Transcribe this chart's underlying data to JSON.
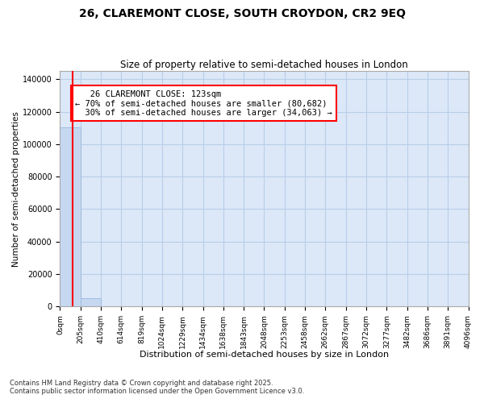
{
  "title_line1": "26, CLAREMONT CLOSE, SOUTH CROYDON, CR2 9EQ",
  "title_line2": "Size of property relative to semi-detached houses in London",
  "xlabel": "Distribution of semi-detached houses by size in London",
  "ylabel": "Number of semi-detached properties",
  "property_size": 123,
  "property_label": "26 CLAREMONT CLOSE: 123sqm",
  "pct_smaller": 70,
  "pct_larger": 30,
  "n_smaller": 80682,
  "n_larger": 34063,
  "bar_color": "#c5d8f0",
  "bar_edge_color": "#a0bce0",
  "vline_color": "red",
  "annotation_box_color": "red",
  "plot_bg_color": "#dce8f8",
  "fig_bg_color": "#ffffff",
  "grid_color": "#b8cee8",
  "bin_edges": [
    0,
    205,
    410,
    614,
    819,
    1024,
    1229,
    1434,
    1638,
    1843,
    2048,
    2253,
    2458,
    2662,
    2867,
    3072,
    3277,
    3482,
    3686,
    3891,
    4096
  ],
  "bin_labels": [
    "0sqm",
    "205sqm",
    "410sqm",
    "614sqm",
    "819sqm",
    "1024sqm",
    "1229sqm",
    "1434sqm",
    "1638sqm",
    "1843sqm",
    "2048sqm",
    "2253sqm",
    "2458sqm",
    "2662sqm",
    "2867sqm",
    "3072sqm",
    "3277sqm",
    "3482sqm",
    "3686sqm",
    "3891sqm",
    "4096sqm"
  ],
  "bar_heights": [
    110500,
    5000,
    0,
    0,
    0,
    0,
    0,
    0,
    0,
    0,
    0,
    0,
    0,
    0,
    0,
    0,
    0,
    0,
    0,
    0
  ],
  "ylim": [
    0,
    145000
  ],
  "yticks": [
    0,
    20000,
    40000,
    60000,
    80000,
    100000,
    120000,
    140000
  ],
  "footnote1": "Contains HM Land Registry data © Crown copyright and database right 2025.",
  "footnote2": "Contains public sector information licensed under the Open Government Licence v3.0."
}
